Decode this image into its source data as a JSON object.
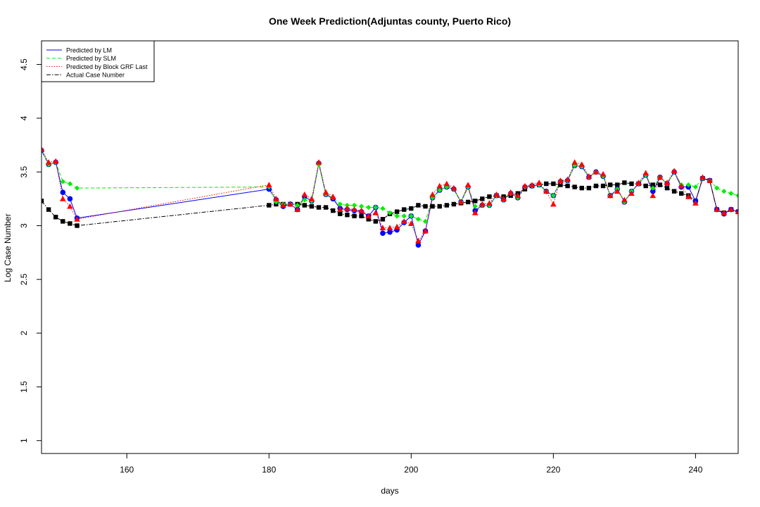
{
  "chart_data": {
    "type": "line",
    "title": "One Week Prediction(Adjuntas county, Puerto Rico)",
    "xlabel": "days",
    "ylabel": "Log Case Number",
    "xlim": [
      148,
      246
    ],
    "ylim": [
      0.88,
      4.72
    ],
    "xticks": [
      160,
      180,
      200,
      220,
      240
    ],
    "yticks": [
      1.0,
      1.5,
      2.0,
      2.5,
      3.0,
      3.5,
      4.0,
      4.5
    ],
    "legend_position": "top-left",
    "grid": false,
    "x": [
      148,
      149,
      150,
      151,
      152,
      153,
      180,
      181,
      182,
      183,
      184,
      185,
      186,
      187,
      188,
      189,
      190,
      191,
      192,
      193,
      194,
      195,
      196,
      197,
      198,
      199,
      200,
      201,
      202,
      203,
      204,
      205,
      206,
      207,
      208,
      209,
      210,
      211,
      212,
      213,
      214,
      215,
      216,
      217,
      218,
      219,
      220,
      221,
      222,
      223,
      224,
      225,
      226,
      227,
      228,
      229,
      230,
      231,
      232,
      233,
      234,
      235,
      236,
      237,
      238,
      239,
      240,
      241,
      242,
      243,
      244,
      245,
      246
    ],
    "series": [
      {
        "name": "Predicted by LM",
        "color": "#0000ff",
        "line": "solid",
        "marker": "circle",
        "values": [
          3.7,
          3.57,
          3.59,
          3.31,
          3.25,
          3.07,
          3.34,
          3.24,
          3.18,
          3.2,
          3.15,
          3.27,
          3.23,
          3.58,
          3.29,
          3.25,
          3.16,
          3.15,
          3.14,
          3.13,
          3.09,
          3.17,
          2.93,
          2.94,
          2.96,
          3.03,
          3.09,
          2.82,
          2.95,
          3.26,
          3.33,
          3.36,
          3.34,
          3.22,
          3.36,
          3.14,
          3.19,
          3.19,
          3.28,
          3.24,
          3.3,
          3.26,
          3.36,
          3.37,
          3.38,
          3.32,
          3.28,
          3.41,
          3.42,
          3.56,
          3.55,
          3.45,
          3.5,
          3.46,
          3.28,
          3.34,
          3.22,
          3.32,
          3.39,
          3.47,
          3.32,
          3.45,
          3.39,
          3.5,
          3.36,
          3.36,
          3.23,
          3.44,
          3.42,
          3.15,
          3.11,
          3.15,
          3.13
        ]
      },
      {
        "name": "Predicted by SLM",
        "color": "#00ee00",
        "line": "dashed",
        "marker": "diamond",
        "values": [
          3.7,
          3.57,
          3.59,
          3.41,
          3.39,
          3.35,
          3.36,
          3.22,
          3.2,
          3.2,
          3.19,
          3.24,
          3.23,
          3.57,
          3.29,
          3.26,
          3.2,
          3.19,
          3.19,
          3.18,
          3.17,
          3.17,
          3.16,
          3.12,
          3.09,
          3.09,
          3.09,
          3.06,
          3.04,
          3.26,
          3.33,
          3.36,
          3.34,
          3.22,
          3.36,
          3.18,
          3.19,
          3.19,
          3.28,
          3.24,
          3.3,
          3.26,
          3.36,
          3.37,
          3.38,
          3.32,
          3.28,
          3.41,
          3.42,
          3.56,
          3.55,
          3.45,
          3.5,
          3.46,
          3.28,
          3.34,
          3.22,
          3.32,
          3.39,
          3.47,
          3.35,
          3.45,
          3.39,
          3.5,
          3.38,
          3.38,
          3.36,
          3.44,
          3.42,
          3.35,
          3.32,
          3.3,
          3.28
        ]
      },
      {
        "name": "Predicted by Block GRF Last",
        "color": "#ff0000",
        "line": "dotted",
        "marker": "triangle",
        "values": [
          3.71,
          3.59,
          3.6,
          3.25,
          3.18,
          3.06,
          3.38,
          3.25,
          3.19,
          3.2,
          3.15,
          3.29,
          3.25,
          3.59,
          3.31,
          3.27,
          3.15,
          3.16,
          3.15,
          3.14,
          3.09,
          3.12,
          2.98,
          2.98,
          2.99,
          3.04,
          3.02,
          2.86,
          2.95,
          3.29,
          3.37,
          3.39,
          3.35,
          3.22,
          3.38,
          3.12,
          3.2,
          3.21,
          3.29,
          3.25,
          3.31,
          3.28,
          3.37,
          3.38,
          3.4,
          3.32,
          3.2,
          3.42,
          3.43,
          3.59,
          3.57,
          3.46,
          3.5,
          3.48,
          3.28,
          3.32,
          3.24,
          3.3,
          3.4,
          3.49,
          3.28,
          3.45,
          3.4,
          3.51,
          3.37,
          3.27,
          3.21,
          3.45,
          3.42,
          3.15,
          3.12,
          3.15,
          3.13
        ]
      },
      {
        "name": "Actual Case Number",
        "color": "#000000",
        "line": "dotdash",
        "marker": "square",
        "values": [
          3.23,
          3.15,
          3.08,
          3.04,
          3.02,
          3.0,
          3.19,
          3.2,
          3.2,
          3.2,
          3.2,
          3.19,
          3.18,
          3.17,
          3.17,
          3.14,
          3.11,
          3.1,
          3.09,
          3.09,
          3.06,
          3.04,
          3.06,
          3.11,
          3.13,
          3.15,
          3.16,
          3.19,
          3.18,
          3.18,
          3.18,
          3.19,
          3.2,
          3.21,
          3.22,
          3.23,
          3.25,
          3.27,
          3.28,
          3.27,
          3.28,
          3.3,
          3.34,
          3.37,
          3.38,
          3.39,
          3.39,
          3.38,
          3.37,
          3.36,
          3.35,
          3.35,
          3.37,
          3.37,
          3.38,
          3.38,
          3.4,
          3.39,
          3.39,
          3.37,
          3.38,
          3.38,
          3.35,
          3.32,
          3.3,
          3.28,
          3.23,
          3.44,
          3.42,
          3.15,
          3.12,
          3.15,
          3.13
        ]
      }
    ]
  }
}
